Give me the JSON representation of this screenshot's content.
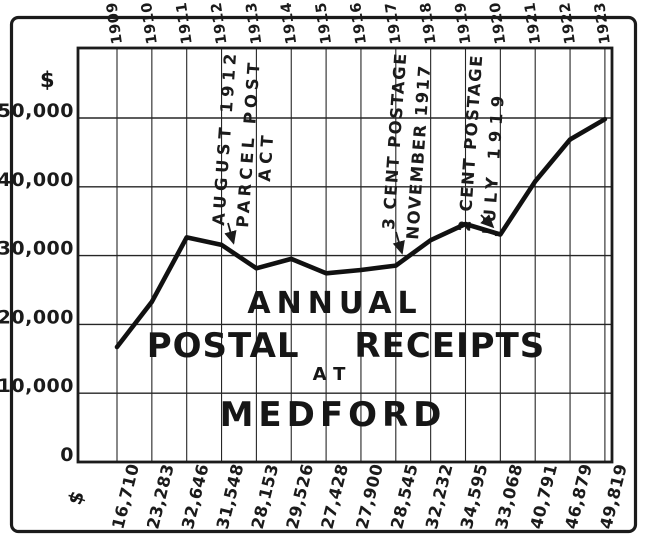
{
  "chart_data": {
    "type": "line",
    "title_lines": [
      "ANNUAL",
      "POSTAL RECEIPTS",
      "AT",
      "MEDFORD"
    ],
    "currency_symbol": "$",
    "years": [
      "1909",
      "1910",
      "1911",
      "1912",
      "1913",
      "1914",
      "1915",
      "1916",
      "1917",
      "1918",
      "1919",
      "1920",
      "1921",
      "1922",
      "1923"
    ],
    "values": [
      16710,
      23283,
      32646,
      31548,
      28153,
      29526,
      27428,
      27900,
      28545,
      32232,
      34595,
      33068,
      40791,
      46879,
      49819
    ],
    "value_labels": [
      "16,710",
      "23,283",
      "32,646",
      "31,548",
      "28,153",
      "29,526",
      "27,428",
      "27,900",
      "28,545",
      "32,232",
      "34,595",
      "33,068",
      "40,791",
      "46,879",
      "49,819"
    ],
    "y_ticks": [
      {
        "value": 50000,
        "label": "50,000"
      },
      {
        "value": 40000,
        "label": "40,000"
      },
      {
        "value": 30000,
        "label": "30,000"
      },
      {
        "value": 20000,
        "label": "20,000"
      },
      {
        "value": 10000,
        "label": "10,000"
      },
      {
        "value": 0,
        "label": "0"
      }
    ],
    "ylim": [
      0,
      60000
    ],
    "grid": true,
    "legend": "none",
    "annotations": [
      {
        "lines": [
          "AUGUST 1912",
          "PARCEL POST",
          "ACT"
        ]
      },
      {
        "lines": [
          "3 CENT POSTAGE",
          "NOVEMBER 1917"
        ]
      },
      {
        "lines": [
          "2 CENT POSTAGE",
          "JULY 1919"
        ]
      }
    ],
    "ink_color": "#1b1b1b",
    "paper_color": "#ffffff"
  }
}
